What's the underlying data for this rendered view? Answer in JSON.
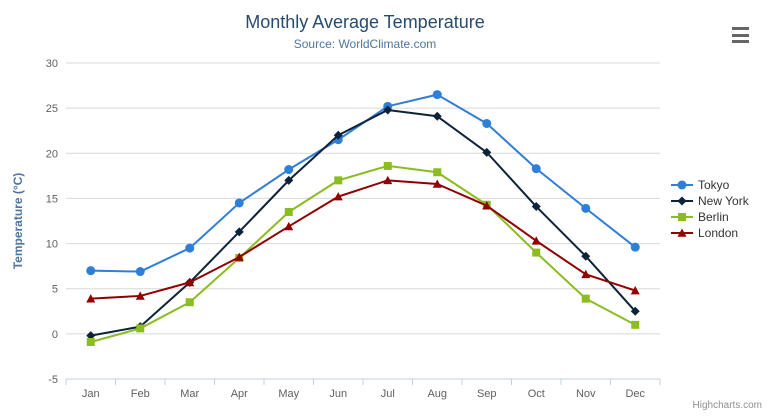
{
  "chart": {
    "credits_label": "Highcharts.com",
    "icons": {
      "context_menu": "hamburger-icon"
    }
  },
  "chart_data": {
    "type": "line",
    "title": "Monthly Average Temperature",
    "subtitle": "Source: WorldClimate.com",
    "xlabel": "",
    "ylabel": "Temperature (°C)",
    "ylim": [
      -5,
      30
    ],
    "ytick_step": 5,
    "grid": true,
    "legend_position": "right",
    "categories": [
      "Jan",
      "Feb",
      "Mar",
      "Apr",
      "May",
      "Jun",
      "Jul",
      "Aug",
      "Sep",
      "Oct",
      "Nov",
      "Dec"
    ],
    "series": [
      {
        "name": "Tokyo",
        "color": "#2f7ed8",
        "marker": "circle",
        "values": [
          7.0,
          6.9,
          9.5,
          14.5,
          18.2,
          21.5,
          25.2,
          26.5,
          23.3,
          18.3,
          13.9,
          9.6
        ]
      },
      {
        "name": "New York",
        "color": "#0d233a",
        "marker": "diamond",
        "values": [
          -0.2,
          0.8,
          5.7,
          11.3,
          17.0,
          22.0,
          24.8,
          24.1,
          20.1,
          14.1,
          8.6,
          2.5
        ]
      },
      {
        "name": "Berlin",
        "color": "#8bbc21",
        "marker": "square",
        "values": [
          -0.9,
          0.6,
          3.5,
          8.4,
          13.5,
          17.0,
          18.6,
          17.9,
          14.3,
          9.0,
          3.9,
          1.0
        ]
      },
      {
        "name": "London",
        "color": "#910000",
        "marker": "triangle",
        "values": [
          3.9,
          4.2,
          5.7,
          8.5,
          11.9,
          15.2,
          17.0,
          16.6,
          14.2,
          10.3,
          6.6,
          4.8
        ]
      }
    ],
    "axis_colors": {
      "grid_line": "#d8d8d8",
      "axis_line": "#c0d0e0",
      "tick_label": "#606060",
      "axis_title": "#4d759e"
    }
  }
}
